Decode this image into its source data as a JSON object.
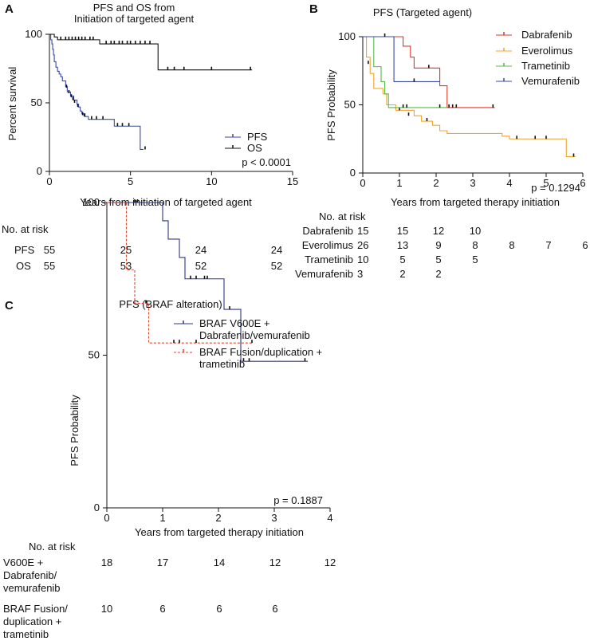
{
  "chart_data": [
    {
      "panel": "A",
      "type": "line",
      "subtype": "kaplan-meier",
      "title": "PFS and OS from Initiation of targeted agent",
      "title_lines": [
        "PFS and OS from",
        "Initiation of targeted agent"
      ],
      "xlabel": "Years from initiation of targeted agent",
      "ylabel": "Percent survival",
      "xlim": [
        0,
        15
      ],
      "ylim": [
        0,
        100
      ],
      "xticks": [
        "0",
        "5",
        "10",
        "15"
      ],
      "yticks": [
        "0",
        "50",
        "100"
      ],
      "pvalue": "p < 0.0001",
      "series": [
        {
          "name": "PFS",
          "color": "#3b4a9e",
          "steps": [
            [
              0,
              100
            ],
            [
              0.08,
              96
            ],
            [
              0.15,
              93
            ],
            [
              0.2,
              89
            ],
            [
              0.25,
              85
            ],
            [
              0.3,
              80
            ],
            [
              0.4,
              76
            ],
            [
              0.5,
              73
            ],
            [
              0.6,
              71
            ],
            [
              0.7,
              69
            ],
            [
              0.8,
              66
            ],
            [
              1.0,
              62
            ],
            [
              1.1,
              58
            ],
            [
              1.3,
              55
            ],
            [
              1.5,
              52
            ],
            [
              1.7,
              49
            ],
            [
              1.8,
              47
            ],
            [
              1.9,
              44
            ],
            [
              2.0,
              42
            ],
            [
              2.2,
              40
            ],
            [
              2.4,
              38
            ],
            [
              3.0,
              38
            ],
            [
              4.0,
              33
            ],
            [
              5.0,
              33
            ],
            [
              5.6,
              16
            ],
            [
              5.8,
              16
            ]
          ],
          "censor": [
            [
              1.05,
              61
            ],
            [
              1.2,
              57
            ],
            [
              1.35,
              54
            ],
            [
              1.45,
              52
            ],
            [
              1.55,
              50
            ],
            [
              1.75,
              47
            ],
            [
              2.05,
              41
            ],
            [
              2.15,
              40
            ],
            [
              2.6,
              38
            ],
            [
              2.9,
              38
            ],
            [
              3.3,
              38
            ],
            [
              4.2,
              33
            ],
            [
              4.5,
              33
            ],
            [
              4.9,
              33
            ],
            [
              5.9,
              16
            ]
          ]
        },
        {
          "name": "OS",
          "color": "#111111",
          "steps": [
            [
              0,
              100
            ],
            [
              0.3,
              98
            ],
            [
              0.5,
              96
            ],
            [
              3.0,
              96
            ],
            [
              3.1,
              93
            ],
            [
              6.6,
              93
            ],
            [
              6.7,
              74
            ],
            [
              12.5,
              74
            ]
          ],
          "censor": [
            [
              0.7,
              96
            ],
            [
              1.0,
              96
            ],
            [
              1.2,
              96
            ],
            [
              1.4,
              96
            ],
            [
              1.6,
              96
            ],
            [
              1.8,
              96
            ],
            [
              2.0,
              96
            ],
            [
              2.2,
              96
            ],
            [
              2.5,
              96
            ],
            [
              2.7,
              96
            ],
            [
              3.5,
              93
            ],
            [
              3.8,
              93
            ],
            [
              4.0,
              93
            ],
            [
              4.3,
              93
            ],
            [
              4.5,
              93
            ],
            [
              4.8,
              93
            ],
            [
              5.0,
              93
            ],
            [
              5.3,
              93
            ],
            [
              5.6,
              93
            ],
            [
              5.9,
              93
            ],
            [
              6.2,
              93
            ],
            [
              7.3,
              74
            ],
            [
              7.7,
              74
            ],
            [
              8.3,
              74
            ],
            [
              10.0,
              74
            ],
            [
              12.4,
              74
            ]
          ]
        }
      ],
      "risk_table": {
        "header": "No. at risk",
        "rows": [
          {
            "label": "PFS",
            "values": [
              "55",
              "25",
              "24",
              "24"
            ]
          },
          {
            "label": "OS",
            "values": [
              "55",
              "53",
              "52",
              "52"
            ]
          }
        ]
      }
    },
    {
      "panel": "B",
      "type": "line",
      "subtype": "kaplan-meier",
      "title": "PFS (Targeted agent)",
      "xlabel": "Years from targeted therapy initiation",
      "ylabel": "PFS Probability",
      "xlim": [
        0,
        6
      ],
      "ylim": [
        0,
        100
      ],
      "xticks": [
        "0",
        "1",
        "2",
        "3",
        "4",
        "5",
        "6"
      ],
      "yticks": [
        "0",
        "50",
        "100"
      ],
      "pvalue": "p = 0.1294",
      "series": [
        {
          "name": "Dabrafenib",
          "color": "#d9382b",
          "steps": [
            [
              0,
              100
            ],
            [
              1.0,
              100
            ],
            [
              1.1,
              93
            ],
            [
              1.3,
              85
            ],
            [
              1.4,
              77
            ],
            [
              2.0,
              77
            ],
            [
              2.1,
              64
            ],
            [
              2.3,
              48
            ],
            [
              3.6,
              48
            ]
          ],
          "censor": [
            [
              1.8,
              77
            ],
            [
              2.35,
              48
            ],
            [
              2.45,
              48
            ],
            [
              2.55,
              48
            ],
            [
              3.55,
              48
            ]
          ]
        },
        {
          "name": "Everolimus",
          "color": "#f0a42f",
          "steps": [
            [
              0,
              100
            ],
            [
              0.1,
              85
            ],
            [
              0.2,
              73
            ],
            [
              0.3,
              62
            ],
            [
              0.55,
              58
            ],
            [
              0.65,
              50
            ],
            [
              0.9,
              46
            ],
            [
              1.4,
              42
            ],
            [
              1.6,
              38
            ],
            [
              1.9,
              35
            ],
            [
              2.1,
              31
            ],
            [
              2.3,
              29
            ],
            [
              3.7,
              29
            ],
            [
              3.8,
              27
            ],
            [
              4.0,
              25
            ],
            [
              5.5,
              25
            ],
            [
              5.55,
              12
            ],
            [
              5.8,
              12
            ]
          ],
          "censor": [
            [
              0.15,
              80
            ],
            [
              1.0,
              46
            ],
            [
              1.25,
              42
            ],
            [
              1.75,
              38
            ],
            [
              4.2,
              25
            ],
            [
              4.7,
              25
            ],
            [
              5.0,
              25
            ],
            [
              5.75,
              12
            ]
          ]
        },
        {
          "name": "Trametinib",
          "color": "#58b74a",
          "steps": [
            [
              0,
              100
            ],
            [
              0.3,
              78
            ],
            [
              0.5,
              67
            ],
            [
              0.6,
              58
            ],
            [
              0.7,
              48
            ],
            [
              2.3,
              48
            ]
          ],
          "censor": [
            [
              1.1,
              48
            ],
            [
              1.2,
              48
            ],
            [
              2.1,
              48
            ]
          ]
        },
        {
          "name": "Vemurafenib",
          "color": "#3b4a9e",
          "steps": [
            [
              0,
              100
            ],
            [
              0.8,
              100
            ],
            [
              0.85,
              67
            ],
            [
              2.1,
              67
            ]
          ],
          "censor": [
            [
              0.6,
              100
            ],
            [
              1.4,
              67
            ]
          ]
        }
      ],
      "risk_table": {
        "header": "No. at risk",
        "rows": [
          {
            "label": "Dabrafenib",
            "values": [
              "15",
              "15",
              "12",
              "10"
            ]
          },
          {
            "label": "Everolimus",
            "values": [
              "26",
              "13",
              "9",
              "8",
              "8",
              "7",
              "6"
            ]
          },
          {
            "label": "Trametinib",
            "values": [
              "10",
              "5",
              "5",
              "5"
            ]
          },
          {
            "label": "Vemurafenib",
            "values": [
              "3",
              "2",
              "2"
            ]
          }
        ]
      }
    },
    {
      "panel": "C",
      "type": "line",
      "subtype": "kaplan-meier",
      "title": "PFS (BRAF alteration)",
      "xlabel": "Years from targeted therapy initiation",
      "ylabel": "PFS Probability",
      "xlim": [
        0,
        4
      ],
      "ylim": [
        0,
        100
      ],
      "xticks": [
        "0",
        "1",
        "2",
        "3",
        "4"
      ],
      "yticks": [
        "0",
        "50",
        "100"
      ],
      "pvalue": "p = 0.1887",
      "series": [
        {
          "name": "BRAF V600E + Dabrafenib/vemurafenib",
          "legend_lines": [
            "BRAF V600E  +",
            "Dabrafenib/vemurafenib"
          ],
          "color": "#2e3580",
          "dash": false,
          "steps": [
            [
              0,
              100
            ],
            [
              0.9,
              100
            ],
            [
              1.0,
              94
            ],
            [
              1.1,
              88
            ],
            [
              1.3,
              82
            ],
            [
              1.4,
              75
            ],
            [
              2.05,
              75
            ],
            [
              2.1,
              65
            ],
            [
              2.3,
              65
            ],
            [
              2.4,
              48
            ],
            [
              3.6,
              48
            ]
          ],
          "censor": [
            [
              0.5,
              100
            ],
            [
              0.55,
              100
            ],
            [
              1.5,
              75
            ],
            [
              1.6,
              75
            ],
            [
              1.75,
              75
            ],
            [
              1.8,
              75
            ],
            [
              2.2,
              65
            ],
            [
              2.45,
              48
            ],
            [
              2.55,
              48
            ],
            [
              3.55,
              48
            ]
          ]
        },
        {
          "name": "BRAF Fusion/duplication + trametinib",
          "legend_lines": [
            "BRAF Fusion/duplication +",
            "trametinib"
          ],
          "color": "#e0452f",
          "dash": true,
          "steps": [
            [
              0,
              100
            ],
            [
              0.3,
              100
            ],
            [
              0.35,
              78
            ],
            [
              0.5,
              67
            ],
            [
              0.7,
              67
            ],
            [
              0.75,
              54
            ],
            [
              2.6,
              54
            ]
          ],
          "censor": [
            [
              0.7,
              67
            ],
            [
              1.2,
              54
            ],
            [
              1.3,
              54
            ],
            [
              1.6,
              54
            ],
            [
              2.6,
              54
            ]
          ]
        }
      ],
      "risk_table": {
        "header": "No. at risk",
        "rows": [
          {
            "label_lines": [
              "V600E +",
              "Dabrafenib/",
              "vemurafenib"
            ],
            "values": [
              "18",
              "17",
              "14",
              "12",
              "12"
            ]
          },
          {
            "label_lines": [
              "BRAF Fusion/",
              "duplication +",
              "trametinib"
            ],
            "values": [
              "10",
              "6",
              "6",
              "6"
            ]
          }
        ]
      }
    }
  ]
}
